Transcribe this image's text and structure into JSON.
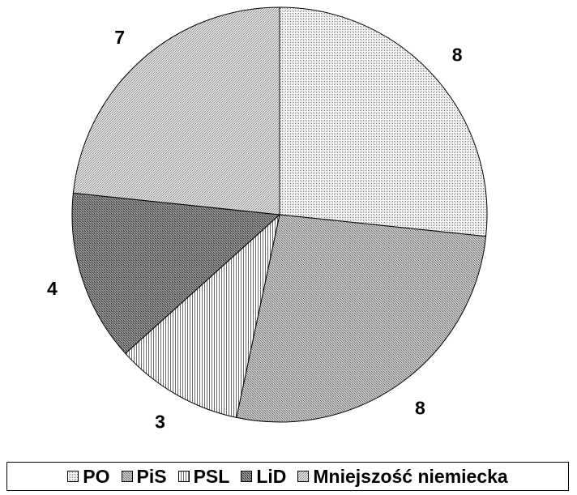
{
  "chart_data": {
    "type": "pie",
    "title": "",
    "categories": [
      "PO",
      "PiS",
      "PSL",
      "LiD",
      "Mniejszość niemiecka"
    ],
    "values": [
      8,
      8,
      3,
      4,
      7
    ],
    "data_labels": [
      "8",
      "8",
      "3",
      "4",
      "7"
    ],
    "start_angle_deg": 0,
    "direction": "clockwise",
    "legend_position": "bottom",
    "series": [
      {
        "values": [
          8,
          8,
          3,
          4,
          7
        ]
      }
    ],
    "patterns": [
      "dots-fine",
      "dots-dense",
      "vertical-lines",
      "crosshatch-dark",
      "dots-medium"
    ]
  }
}
